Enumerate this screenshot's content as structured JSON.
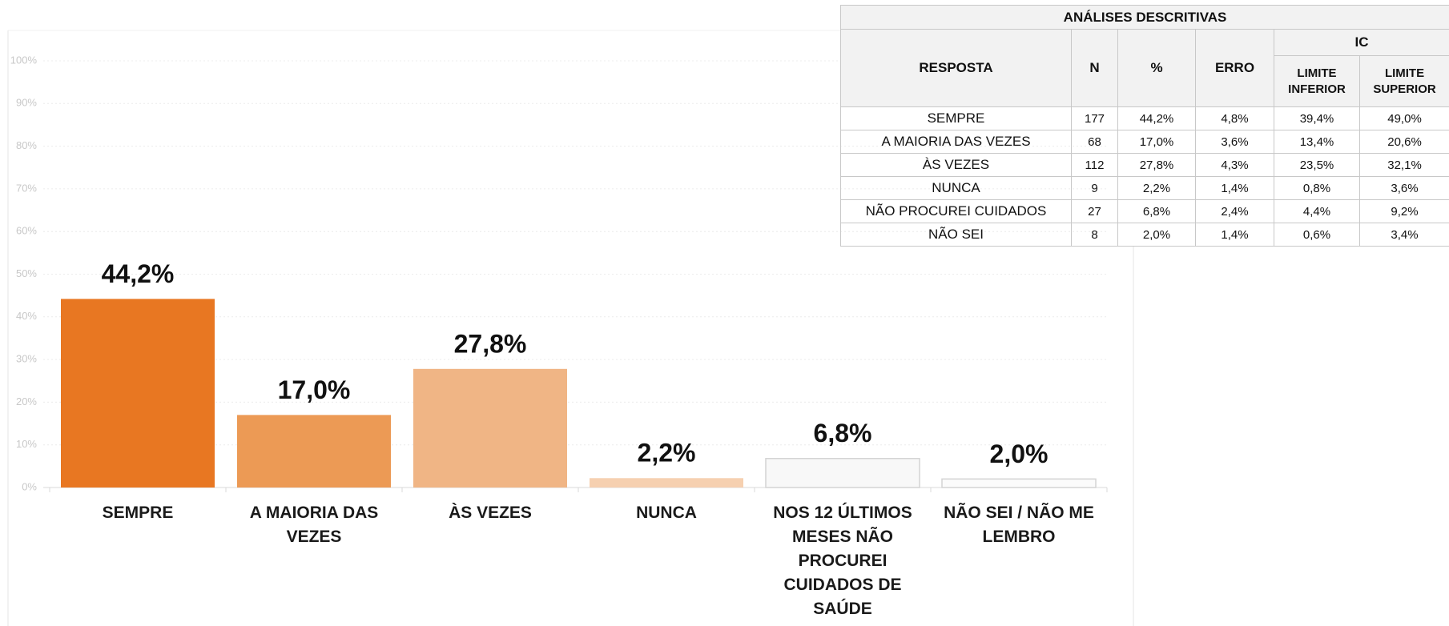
{
  "chart_data": {
    "type": "bar",
    "categories": [
      "SEMPRE",
      "A MAIORIA DAS VEZES",
      "ÀS VEZES",
      "NUNCA",
      "NOS 12 ÚLTIMOS MESES NÃO PROCUREI CUIDADOS DE SAÚDE",
      "NÃO SEI / NÃO ME LEMBRO"
    ],
    "values": [
      44.2,
      17.0,
      27.8,
      2.2,
      6.8,
      2.0
    ],
    "value_labels": [
      "44,2%",
      "17,0%",
      "27,8%",
      "2,2%",
      "6,8%",
      "2,0%"
    ],
    "colors": [
      "#E87722",
      "#EC9A55",
      "#F0B585",
      "#F6D0B0",
      "#F8F8F8",
      "#FBFBFB"
    ],
    "edgecolors": [
      null,
      null,
      null,
      null,
      "#d4d4d4",
      "#d4d4d4"
    ],
    "ylim": [
      0,
      100
    ],
    "yticks": [
      {
        "value": 0,
        "label": "0%"
      },
      {
        "value": 10,
        "label": "10%"
      },
      {
        "value": 20,
        "label": "20%"
      },
      {
        "value": 30,
        "label": "30%"
      },
      {
        "value": 40,
        "label": "40%"
      },
      {
        "value": 50,
        "label": "50%"
      },
      {
        "value": 60,
        "label": "60%"
      },
      {
        "value": 70,
        "label": "70%"
      },
      {
        "value": 80,
        "label": "80%"
      },
      {
        "value": 90,
        "label": "90%"
      },
      {
        "value": 100,
        "label": "100%"
      }
    ],
    "grid": true
  },
  "table": {
    "title": "ANÁLISES DESCRITIVAS",
    "columns": [
      "RESPOSTA",
      "N",
      "%",
      "ERRO"
    ],
    "group": "IC",
    "subcolumns": [
      "LIMITE INFERIOR",
      "LIMITE SUPERIOR"
    ],
    "rows": [
      [
        "SEMPRE",
        "177",
        "44,2%",
        "4,8%",
        "39,4%",
        "49,0%"
      ],
      [
        "A MAIORIA  DAS VEZES",
        "68",
        "17,0%",
        "3,6%",
        "13,4%",
        "20,6%"
      ],
      [
        "ÀS VEZES",
        "112",
        "27,8%",
        "4,3%",
        "23,5%",
        "32,1%"
      ],
      [
        "NUNCA",
        "9",
        "2,2%",
        "1,4%",
        "0,8%",
        "3,6%"
      ],
      [
        "NÃO PROCUREI CUIDADOS",
        "27",
        "6,8%",
        "2,4%",
        "4,4%",
        "9,2%"
      ],
      [
        "NÃO SEI",
        "8",
        "2,0%",
        "1,4%",
        "0,6%",
        "3,4%"
      ]
    ]
  }
}
